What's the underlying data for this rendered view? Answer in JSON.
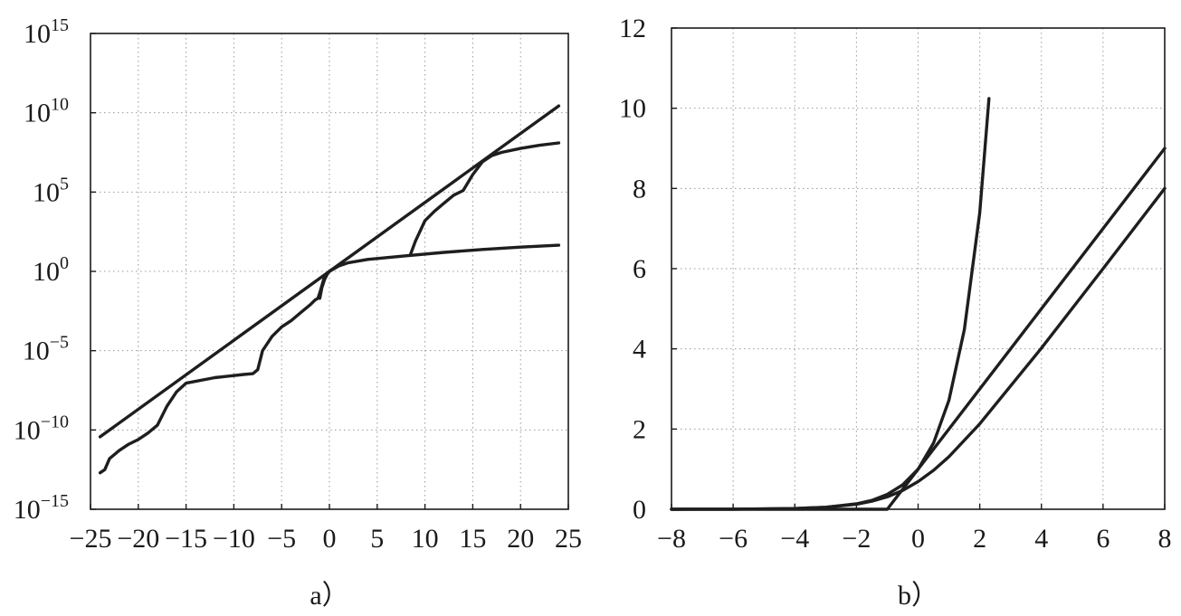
{
  "chart_data": [
    {
      "type": "line",
      "panel_label": "a）",
      "x_ticks": [
        "−25",
        "−20",
        "−15",
        "−10",
        "−5",
        "0",
        "5",
        "10",
        "15",
        "20",
        "25"
      ],
      "y_ticks": [
        {
          "base": "10",
          "exp": "−15"
        },
        {
          "base": "10",
          "exp": "−10"
        },
        {
          "base": "10",
          "exp": "−5"
        },
        {
          "base": "10",
          "exp": "0"
        },
        {
          "base": "10",
          "exp": "5"
        },
        {
          "base": "10",
          "exp": "10"
        },
        {
          "base": "10",
          "exp": "15"
        }
      ],
      "xlim": [
        -25,
        25
      ],
      "ylim_log10": [
        -15,
        15
      ],
      "y_scale": "log",
      "grid": true,
      "series": [
        {
          "x": [
            -24,
            24
          ],
          "y_log10": [
            -10.43,
            10.43
          ]
        },
        {
          "x": [
            -24,
            -23.5,
            -23,
            -22,
            -21,
            -20,
            -19,
            -18,
            -17,
            -16,
            -15,
            -12,
            -9,
            -8,
            -7.5,
            -7,
            -6,
            -5,
            -4,
            -3,
            -2,
            -1.5,
            -1.2,
            -1.0,
            -0.5,
            0,
            1,
            2,
            4,
            8,
            12,
            16,
            20,
            24
          ],
          "y_log10": [
            -12.7,
            -12.5,
            -11.8,
            -11.3,
            -10.9,
            -10.6,
            -10.2,
            -9.7,
            -8.5,
            -7.6,
            -7.05,
            -6.7,
            -6.5,
            -6.45,
            -6.2,
            -5.0,
            -4.1,
            -3.5,
            -3.1,
            -2.6,
            -2.1,
            -1.8,
            -1.7,
            -1.35,
            -0.3,
            0,
            0.35,
            0.55,
            0.75,
            0.98,
            1.2,
            1.38,
            1.53,
            1.65
          ]
        },
        {
          "x": [
            -1.0,
            -0.8,
            -0.5,
            -0.2,
            0
          ],
          "y_log10": [
            -1.7,
            -1.05,
            -0.5,
            -0.15,
            0
          ]
        },
        {
          "x": [
            8.5,
            9,
            10,
            11,
            12,
            13,
            14,
            15,
            16,
            17,
            18,
            20,
            22,
            24
          ],
          "y_log10": [
            1.1,
            1.9,
            3.2,
            3.8,
            4.3,
            4.8,
            5.1,
            6.1,
            6.9,
            7.3,
            7.5,
            7.75,
            7.95,
            8.1
          ]
        }
      ]
    },
    {
      "type": "line",
      "panel_label": "b）",
      "x_ticks": [
        "−8",
        "−6",
        "−4",
        "−2",
        "0",
        "2",
        "4",
        "6",
        "8"
      ],
      "y_ticks": [
        "0",
        "2",
        "4",
        "6",
        "8",
        "10",
        "12"
      ],
      "xlim": [
        -8,
        8
      ],
      "ylim": [
        0,
        12
      ],
      "grid": true,
      "series": [
        {
          "x": [
            -8,
            -6,
            -4,
            -3,
            -2,
            -1.5,
            -1,
            -0.5,
            0,
            0.5,
            1,
            1.5,
            2,
            2.3
          ],
          "y": [
            0.0003,
            0.0025,
            0.018,
            0.05,
            0.135,
            0.22,
            0.37,
            0.61,
            1.0,
            1.65,
            2.72,
            4.48,
            7.39,
            10.24
          ]
        },
        {
          "x": [
            -8,
            -6,
            -4,
            -3,
            -2,
            -1.5,
            -1,
            -0.5,
            0,
            0.5,
            1,
            2,
            4,
            6,
            8
          ],
          "y": [
            0.0003,
            0.0025,
            0.018,
            0.049,
            0.127,
            0.2,
            0.31,
            0.47,
            0.69,
            0.97,
            1.31,
            2.13,
            4.02,
            6.0,
            8.0
          ]
        },
        {
          "x": [
            -8,
            -1,
            0,
            8
          ],
          "y": [
            0,
            0,
            1,
            9
          ]
        }
      ]
    }
  ]
}
